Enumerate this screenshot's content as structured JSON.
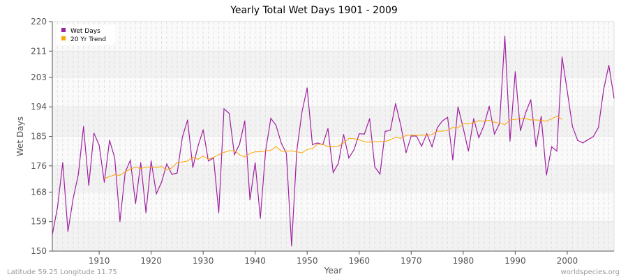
{
  "chart_data": {
    "type": "line",
    "title": "Yearly Total Wet Days 1901 - 2009",
    "xlabel": "Year",
    "ylabel": "Wet Days",
    "xlim": [
      1901,
      2009
    ],
    "ylim": [
      150,
      220
    ],
    "yticks": [
      150,
      159,
      168,
      176,
      185,
      194,
      203,
      211,
      220
    ],
    "xticks": [
      1910,
      1920,
      1930,
      1940,
      1950,
      1960,
      1970,
      1980,
      1990,
      2000
    ],
    "grid": true,
    "legend_position": "top-left",
    "series": [
      {
        "name": "Wet Days",
        "color": "#a020a0",
        "x_start": 1901,
        "values": [
          155,
          163.5,
          177,
          156,
          166,
          173.4,
          188,
          170,
          186,
          182.3,
          171,
          183.8,
          178.4,
          159,
          174,
          177.7,
          164.5,
          177,
          161.7,
          177.5,
          167.5,
          171,
          176.6,
          173.4,
          173.8,
          184.7,
          190,
          175.5,
          182,
          187,
          177.5,
          178.4,
          161.7,
          193.4,
          192,
          179.4,
          182.6,
          189.7,
          165.6,
          177,
          160,
          180.5,
          190.5,
          188.4,
          183,
          179.8,
          151.6,
          180.5,
          192.5,
          199.8,
          182.5,
          183,
          182.5,
          187.4,
          174,
          176.8,
          185.6,
          178.4,
          180.9,
          185.8,
          185.7,
          190.4,
          175.7,
          173.5,
          186.5,
          186.9,
          195,
          188.3,
          180,
          185.1,
          185.1,
          182,
          185.8,
          181.8,
          187.6,
          189.7,
          190.8,
          177.8,
          194,
          187.6,
          180.5,
          190.4,
          184.6,
          188.4,
          194.2,
          185.7,
          189,
          215.6,
          183.5,
          204.7,
          186.7,
          192.2,
          196.2,
          181.8,
          191.1,
          173.2,
          181.8,
          180.5,
          209.2,
          198.9,
          188,
          183.8,
          183,
          184,
          184.9,
          187.7,
          199.3,
          206.7,
          196.7
        ]
      },
      {
        "name": "20 Yr Trend",
        "color": "#ffa500",
        "x_start": 1911,
        "values": [
          172.1,
          172.7,
          173.3,
          173.1,
          174.2,
          175,
          175.6,
          175.2,
          175.6,
          175.6,
          175.5,
          175.8,
          174.7,
          175.4,
          177,
          177.2,
          177.5,
          178.6,
          178,
          179,
          178,
          178.6,
          179.4,
          180.1,
          180.6,
          180.7,
          179.4,
          178.7,
          179.8,
          180.3,
          180.3,
          180.6,
          180.7,
          181.9,
          180.5,
          180.5,
          180.6,
          180.3,
          180,
          181,
          181.3,
          182.6,
          182.6,
          181.8,
          181.8,
          182,
          183,
          184.4,
          184.3,
          184,
          183.3,
          183.2,
          183.4,
          183.4,
          183.4,
          184,
          184.7,
          184.4,
          185.3,
          185.4,
          185.3,
          185.4,
          185.3,
          185.6,
          186.6,
          186.6,
          186.8,
          187.7,
          187.6,
          188.8,
          188.8,
          189.1,
          189.8,
          189.6,
          189.9,
          189.3,
          189,
          188.6,
          190,
          190.2,
          190.4,
          190.4,
          190,
          190,
          189.9,
          189.6,
          190.4,
          191.1,
          190.2
        ]
      }
    ]
  },
  "footer": {
    "location": "Latitude 59.25 Longitude 11.75",
    "source": "worldspecies.org"
  }
}
